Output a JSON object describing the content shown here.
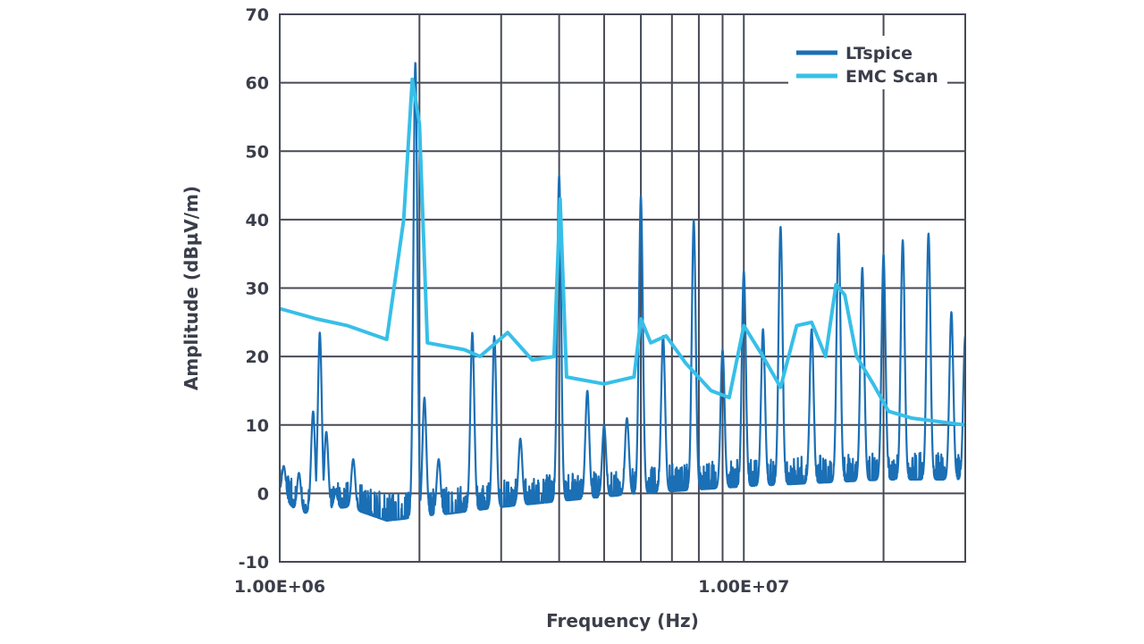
{
  "chart_data": {
    "type": "line",
    "title": "",
    "xlabel": "Frequency (Hz)",
    "ylabel": "Amplitude (dBµV/m)",
    "x_scale": "log",
    "xlim": [
      1000000,
      30000000
    ],
    "ylim": [
      -10,
      70
    ],
    "x_tick_labels": [
      {
        "value": 1000000,
        "label": "1.00E+06"
      },
      {
        "value": 10000000,
        "label": "1.00E+07"
      }
    ],
    "y_ticks": [
      -10,
      0,
      10,
      20,
      30,
      40,
      50,
      60,
      70
    ],
    "grid": true,
    "legend_position": "top-right",
    "series": [
      {
        "name": "LTspice",
        "color": "#1a6fb5",
        "style": "dense spectrum; noise floor around -5 to 0 with harmonic spikes",
        "floor": [
          [
            1000000,
            0
          ],
          [
            1100000,
            -3
          ],
          [
            1400000,
            -2
          ],
          [
            1700000,
            -4
          ],
          [
            2300000,
            -3
          ],
          [
            3000000,
            -2
          ],
          [
            4200000,
            -1
          ],
          [
            6000000,
            0
          ],
          [
            10000000,
            1
          ],
          [
            20000000,
            2
          ],
          [
            30000000,
            2
          ]
        ],
        "points": [
          [
            1020000,
            4
          ],
          [
            1100000,
            3
          ],
          [
            1180000,
            12
          ],
          [
            1220000,
            23.5
          ],
          [
            1260000,
            9
          ],
          [
            1320000,
            0
          ],
          [
            1440000,
            5
          ],
          [
            1960000,
            63
          ],
          [
            2050000,
            14
          ],
          [
            2200000,
            5
          ],
          [
            2600000,
            23.5
          ],
          [
            2900000,
            23
          ],
          [
            3300000,
            8
          ],
          [
            4000000,
            46.5
          ],
          [
            4600000,
            15
          ],
          [
            5000000,
            10
          ],
          [
            5600000,
            11
          ],
          [
            6000000,
            43.5
          ],
          [
            6700000,
            23
          ],
          [
            7800000,
            40
          ],
          [
            9000000,
            21
          ],
          [
            10000000,
            32.5
          ],
          [
            11000000,
            24
          ],
          [
            12000000,
            39
          ],
          [
            14000000,
            24
          ],
          [
            16000000,
            38
          ],
          [
            18000000,
            33
          ],
          [
            20000000,
            35
          ],
          [
            22000000,
            37
          ],
          [
            25000000,
            38
          ],
          [
            28000000,
            26.5
          ],
          [
            30000000,
            23
          ]
        ]
      },
      {
        "name": "EMC Scan",
        "color": "#37bfe8",
        "points": [
          [
            1000000,
            27
          ],
          [
            1200000,
            25.5
          ],
          [
            1400000,
            24.5
          ],
          [
            1700000,
            22.5
          ],
          [
            1850000,
            40
          ],
          [
            1930000,
            60.5
          ],
          [
            2000000,
            54
          ],
          [
            2080000,
            22
          ],
          [
            2500000,
            21
          ],
          [
            2700000,
            20
          ],
          [
            3100000,
            23.5
          ],
          [
            3500000,
            19.5
          ],
          [
            3900000,
            20
          ],
          [
            4020000,
            43
          ],
          [
            4150000,
            17
          ],
          [
            5000000,
            16
          ],
          [
            5800000,
            17
          ],
          [
            6000000,
            25.5
          ],
          [
            6300000,
            22
          ],
          [
            6800000,
            23
          ],
          [
            7500000,
            19
          ],
          [
            8500000,
            15
          ],
          [
            9300000,
            14
          ],
          [
            10000000,
            24.5
          ],
          [
            11000000,
            20
          ],
          [
            12000000,
            15.5
          ],
          [
            13000000,
            24.5
          ],
          [
            14000000,
            25
          ],
          [
            15000000,
            20
          ],
          [
            15800000,
            30.5
          ],
          [
            16500000,
            29
          ],
          [
            17500000,
            20
          ],
          [
            19000000,
            16
          ],
          [
            20500000,
            12
          ],
          [
            23000000,
            11
          ],
          [
            30000000,
            10
          ]
        ]
      }
    ]
  }
}
